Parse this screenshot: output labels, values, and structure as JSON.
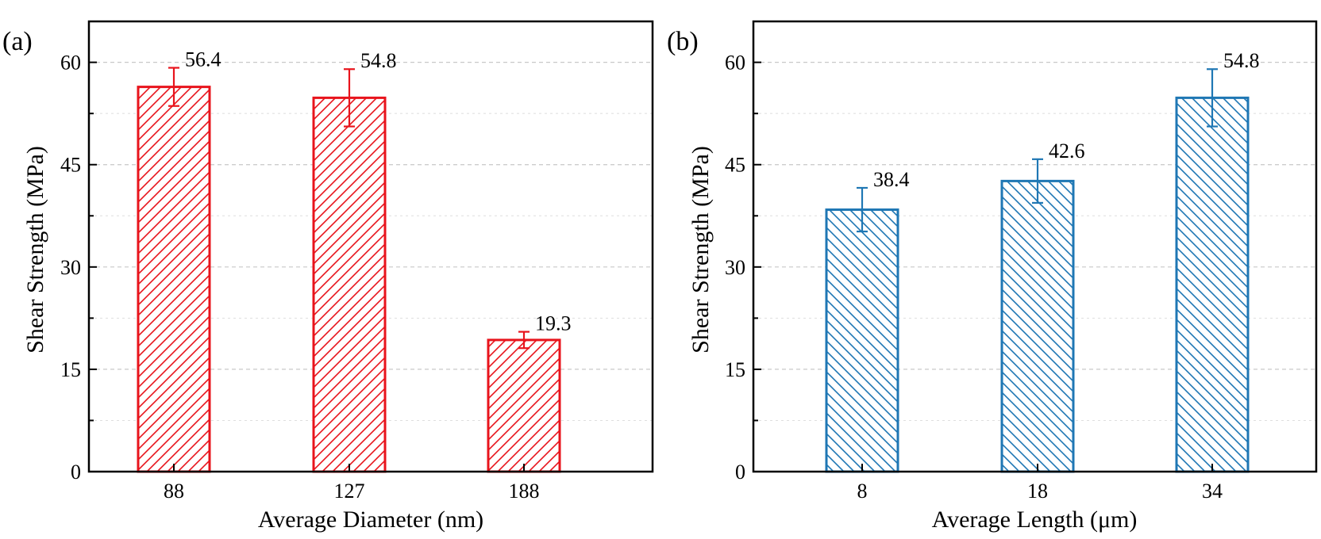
{
  "chart_data": [
    {
      "type": "bar",
      "panel_label": "(a)",
      "categories": [
        "88",
        "127",
        "188"
      ],
      "values": [
        56.4,
        54.8,
        19.3
      ],
      "errors": [
        2.8,
        4.2,
        1.2
      ],
      "data_labels": [
        "56.4",
        "54.8",
        "19.3"
      ],
      "xlabel": "Average Diameter (nm)",
      "ylabel": "Shear Strength (MPa)",
      "ylim": [
        0,
        66
      ],
      "yticks": [
        "0",
        "15",
        "30",
        "45",
        "60"
      ],
      "ytick_values": [
        0,
        15,
        30,
        45,
        60
      ],
      "color": "#e8141c",
      "hatch": "forward-diagonal",
      "grid": true,
      "legend": "none"
    },
    {
      "type": "bar",
      "panel_label": "(b)",
      "categories": [
        "8",
        "18",
        "34"
      ],
      "values": [
        38.4,
        42.6,
        54.8
      ],
      "errors": [
        3.2,
        3.2,
        4.2
      ],
      "data_labels": [
        "38.4",
        "42.6",
        "54.8"
      ],
      "xlabel": "Average Length (μm)",
      "ylabel": "Shear Strength (MPa)",
      "ylim": [
        0,
        66
      ],
      "yticks": [
        "0",
        "15",
        "30",
        "45",
        "60"
      ],
      "ytick_values": [
        0,
        15,
        30,
        45,
        60
      ],
      "color": "#1f77b4",
      "hatch": "back-diagonal",
      "grid": true,
      "legend": "none"
    }
  ]
}
